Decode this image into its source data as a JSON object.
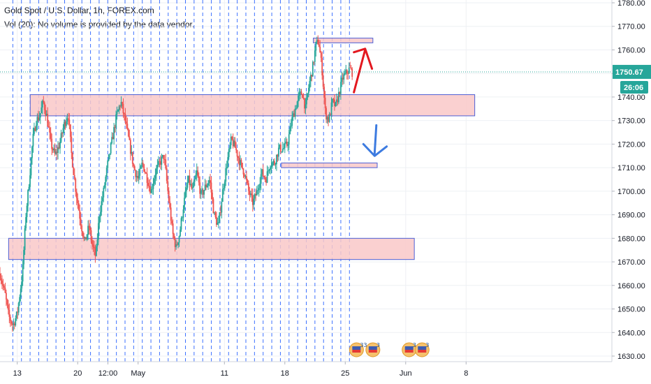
{
  "header": {
    "title": "Gold Spot / U.S. Dollar, 1h, FOREX.com",
    "volume_note": "Vol (20): No volume is provided by the data vendor."
  },
  "colors": {
    "up": "#26a69a",
    "down": "#ef5350",
    "zone_fill": "#f9c8c8",
    "zone_border": "#4c5fd5",
    "grid": "#eef0f4",
    "vline": "#2962ff",
    "last_price": "#26a69a",
    "up_arrow": "#e3181f",
    "down_arrow": "#3d7be0",
    "axis_text": "#131722",
    "countdown_bg": "#26a69a"
  },
  "chart_data": {
    "type": "candlestick",
    "title": "Gold Spot / U.S. Dollar, 1h, FOREX.com",
    "ylim": [
      1626,
      1780
    ],
    "y_ticks": [
      1630,
      1640,
      1650,
      1660,
      1670,
      1680,
      1690,
      1700,
      1710,
      1720,
      1730,
      1740,
      1750,
      1760,
      1770,
      1780
    ],
    "y_tick_labels": [
      "1630.00",
      "1640.00",
      "1650.00",
      "1660.00",
      "1670.00",
      "1680.00",
      "1690.00",
      "1700.00",
      "1710.00",
      "1720.00",
      "1730.00",
      "1740.00",
      "1750.00",
      "1760.00",
      "1770.00",
      "1780.00"
    ],
    "x_range_days": [
      0,
      35
    ],
    "x_ticks": [
      {
        "label": "13",
        "day": 2.0
      },
      {
        "label": "20",
        "day": 9.0
      },
      {
        "label": "12:00",
        "day": 12.5
      },
      {
        "label": "May",
        "day": 16.0
      },
      {
        "label": "11",
        "day": 26.0
      },
      {
        "label": "18",
        "day": 33.0
      },
      {
        "label": "25",
        "day": 40.0
      },
      {
        "label": "Jun",
        "day": 47.0
      },
      {
        "label": "8",
        "day": 54.0
      }
    ],
    "last_price": 1750.67,
    "last_price_label": "1750.67",
    "countdown": "26:06",
    "path": [
      [
        0.0,
        1665
      ],
      [
        0.6,
        1656
      ],
      [
        1.0,
        1647
      ],
      [
        1.5,
        1643
      ],
      [
        2.0,
        1648
      ],
      [
        2.6,
        1665
      ],
      [
        3.0,
        1690
      ],
      [
        3.4,
        1705
      ],
      [
        3.8,
        1722
      ],
      [
        4.2,
        1730
      ],
      [
        4.6,
        1732
      ],
      [
        5.0,
        1738
      ],
      [
        5.4,
        1732
      ],
      [
        5.9,
        1720
      ],
      [
        6.4,
        1715
      ],
      [
        6.9,
        1720
      ],
      [
        7.4,
        1728
      ],
      [
        7.9,
        1733
      ],
      [
        8.3,
        1715
      ],
      [
        8.8,
        1700
      ],
      [
        9.3,
        1688
      ],
      [
        9.8,
        1678
      ],
      [
        10.3,
        1685
      ],
      [
        10.7,
        1677
      ],
      [
        11.1,
        1672
      ],
      [
        11.5,
        1690
      ],
      [
        12.0,
        1700
      ],
      [
        12.5,
        1712
      ],
      [
        13.0,
        1722
      ],
      [
        13.5,
        1732
      ],
      [
        14.0,
        1738
      ],
      [
        14.5,
        1730
      ],
      [
        15.0,
        1720
      ],
      [
        15.5,
        1710
      ],
      [
        16.0,
        1705
      ],
      [
        16.5,
        1712
      ],
      [
        17.0,
        1706
      ],
      [
        17.5,
        1700
      ],
      [
        18.0,
        1708
      ],
      [
        18.5,
        1712
      ],
      [
        19.0,
        1715
      ],
      [
        19.5,
        1698
      ],
      [
        20.0,
        1682
      ],
      [
        20.4,
        1676
      ],
      [
        20.8,
        1682
      ],
      [
        21.3,
        1695
      ],
      [
        21.8,
        1705
      ],
      [
        22.3,
        1700
      ],
      [
        22.8,
        1708
      ],
      [
        23.3,
        1698
      ],
      [
        23.8,
        1702
      ],
      [
        24.3,
        1705
      ],
      [
        24.8,
        1690
      ],
      [
        25.3,
        1685
      ],
      [
        25.8,
        1700
      ],
      [
        26.3,
        1712
      ],
      [
        26.8,
        1722
      ],
      [
        27.3,
        1718
      ],
      [
        27.8,
        1712
      ],
      [
        28.3,
        1708
      ],
      [
        28.8,
        1700
      ],
      [
        29.3,
        1695
      ],
      [
        29.8,
        1700
      ],
      [
        30.3,
        1708
      ],
      [
        30.8,
        1705
      ],
      [
        31.3,
        1712
      ],
      [
        31.8,
        1712
      ],
      [
        32.3,
        1718
      ],
      [
        32.8,
        1718
      ],
      [
        33.3,
        1720
      ],
      [
        33.8,
        1730
      ],
      [
        34.2,
        1735
      ],
      [
        34.6,
        1740
      ],
      [
        35.0,
        1742
      ],
      [
        35.4,
        1735
      ],
      [
        35.8,
        1745
      ],
      [
        36.2,
        1752
      ],
      [
        36.6,
        1762
      ],
      [
        36.9,
        1764
      ],
      [
        37.3,
        1752
      ],
      [
        37.7,
        1733
      ],
      [
        38.1,
        1730
      ],
      [
        38.5,
        1738
      ],
      [
        38.9,
        1736
      ],
      [
        39.3,
        1742
      ],
      [
        39.7,
        1748
      ],
      [
        40.1,
        1750
      ],
      [
        40.5,
        1752
      ],
      [
        40.9,
        1750
      ]
    ],
    "zones": [
      {
        "name": "resistance-1740",
        "day_start": 3.5,
        "day_end": 55.0,
        "top": 1741,
        "bottom": 1732
      },
      {
        "name": "support-1680",
        "day_start": 1.0,
        "day_end": 48.0,
        "top": 1680,
        "bottom": 1671
      },
      {
        "name": "level-1712",
        "day_start": 32.6,
        "day_end": 43.7,
        "top": 1712,
        "bottom": 1710
      },
      {
        "name": "level-1765",
        "day_start": 36.3,
        "day_end": 43.2,
        "top": 1765,
        "bottom": 1763
      }
    ],
    "vlines_every_days": 1,
    "vlines_range": [
      1,
      40
    ],
    "events": [
      {
        "label": "33",
        "day": 41.3
      },
      {
        "label": "3",
        "day": 43.2
      },
      {
        "label": "3",
        "day": 47.4
      },
      {
        "label": "3",
        "day": 48.9
      }
    ]
  }
}
